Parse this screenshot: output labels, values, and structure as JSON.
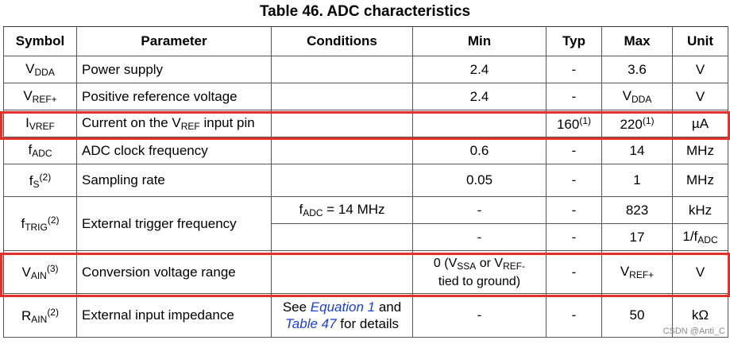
{
  "title": "Table 46. ADC characteristics",
  "headers": {
    "symbol": "Symbol",
    "parameter": "Parameter",
    "conditions": "Conditions",
    "min": "Min",
    "typ": "Typ",
    "max": "Max",
    "unit": "Unit"
  },
  "rows": {
    "vdda": {
      "sym_main": "V",
      "sym_sub": "DDA",
      "parameter": "Power supply",
      "min": "2.4",
      "typ": "-",
      "max": "3.6",
      "unit": "V"
    },
    "vref_plus": {
      "sym_main": "V",
      "sym_sub": "REF+",
      "parameter": "Positive reference voltage",
      "min": "2.4",
      "typ": "-",
      "max_main": "V",
      "max_sub": "DDA",
      "unit": "V"
    },
    "ivref": {
      "sym_main": "I",
      "sym_sub": "VREF",
      "param_main": "Current on the V",
      "param_sub": "REF",
      "param_tail": " input pin",
      "typ_main": "160",
      "typ_sup": "(1)",
      "max_main": "220",
      "max_sup": "(1)",
      "unit": "µA"
    },
    "fadc": {
      "sym_main": "f",
      "sym_sub": "ADC",
      "parameter": "ADC clock frequency",
      "min": "0.6",
      "typ": "-",
      "max": "14",
      "unit": "MHz"
    },
    "fs": {
      "sym_main": "f",
      "sym_sub": "S",
      "sym_sup": "(2)",
      "parameter": "Sampling rate",
      "min": "0.05",
      "typ": "-",
      "max": "1",
      "unit": "MHz"
    },
    "ftrig": {
      "sym_main": "f",
      "sym_sub": "TRIG",
      "sym_sup": "(2)",
      "parameter": "External trigger frequency",
      "r1": {
        "cond_main": "f",
        "cond_sub": "ADC",
        "cond_tail": " = 14 MHz",
        "min": "-",
        "typ": "-",
        "max": "823",
        "unit": "kHz"
      },
      "r2": {
        "min": "-",
        "typ": "-",
        "max": "17",
        "unit_main": "1/f",
        "unit_sub": "ADC"
      }
    },
    "vain": {
      "sym_main": "V",
      "sym_sub": "AIN",
      "sym_sup": "(3)",
      "parameter": "Conversion voltage range",
      "min_l1a": "0 (V",
      "min_l1b": "SSA",
      "min_l1c": " or V",
      "min_l1d": "REF-",
      "min_l2": "tied to ground)",
      "typ": "-",
      "max_main": "V",
      "max_sub": "REF+",
      "unit": "V"
    },
    "rain": {
      "sym_main": "R",
      "sym_sub": "AIN",
      "sym_sup": "(2)",
      "parameter": "External input impedance",
      "cond_a": "See ",
      "cond_link1": "Equation 1",
      "cond_b": " and",
      "cond_link2": "Table 47",
      "cond_c": " for details",
      "min": "-",
      "typ": "-",
      "max": "50",
      "unit": "kΩ"
    }
  },
  "watermark": "CSDN @Anti_C",
  "highlight_color": "#e4302a"
}
